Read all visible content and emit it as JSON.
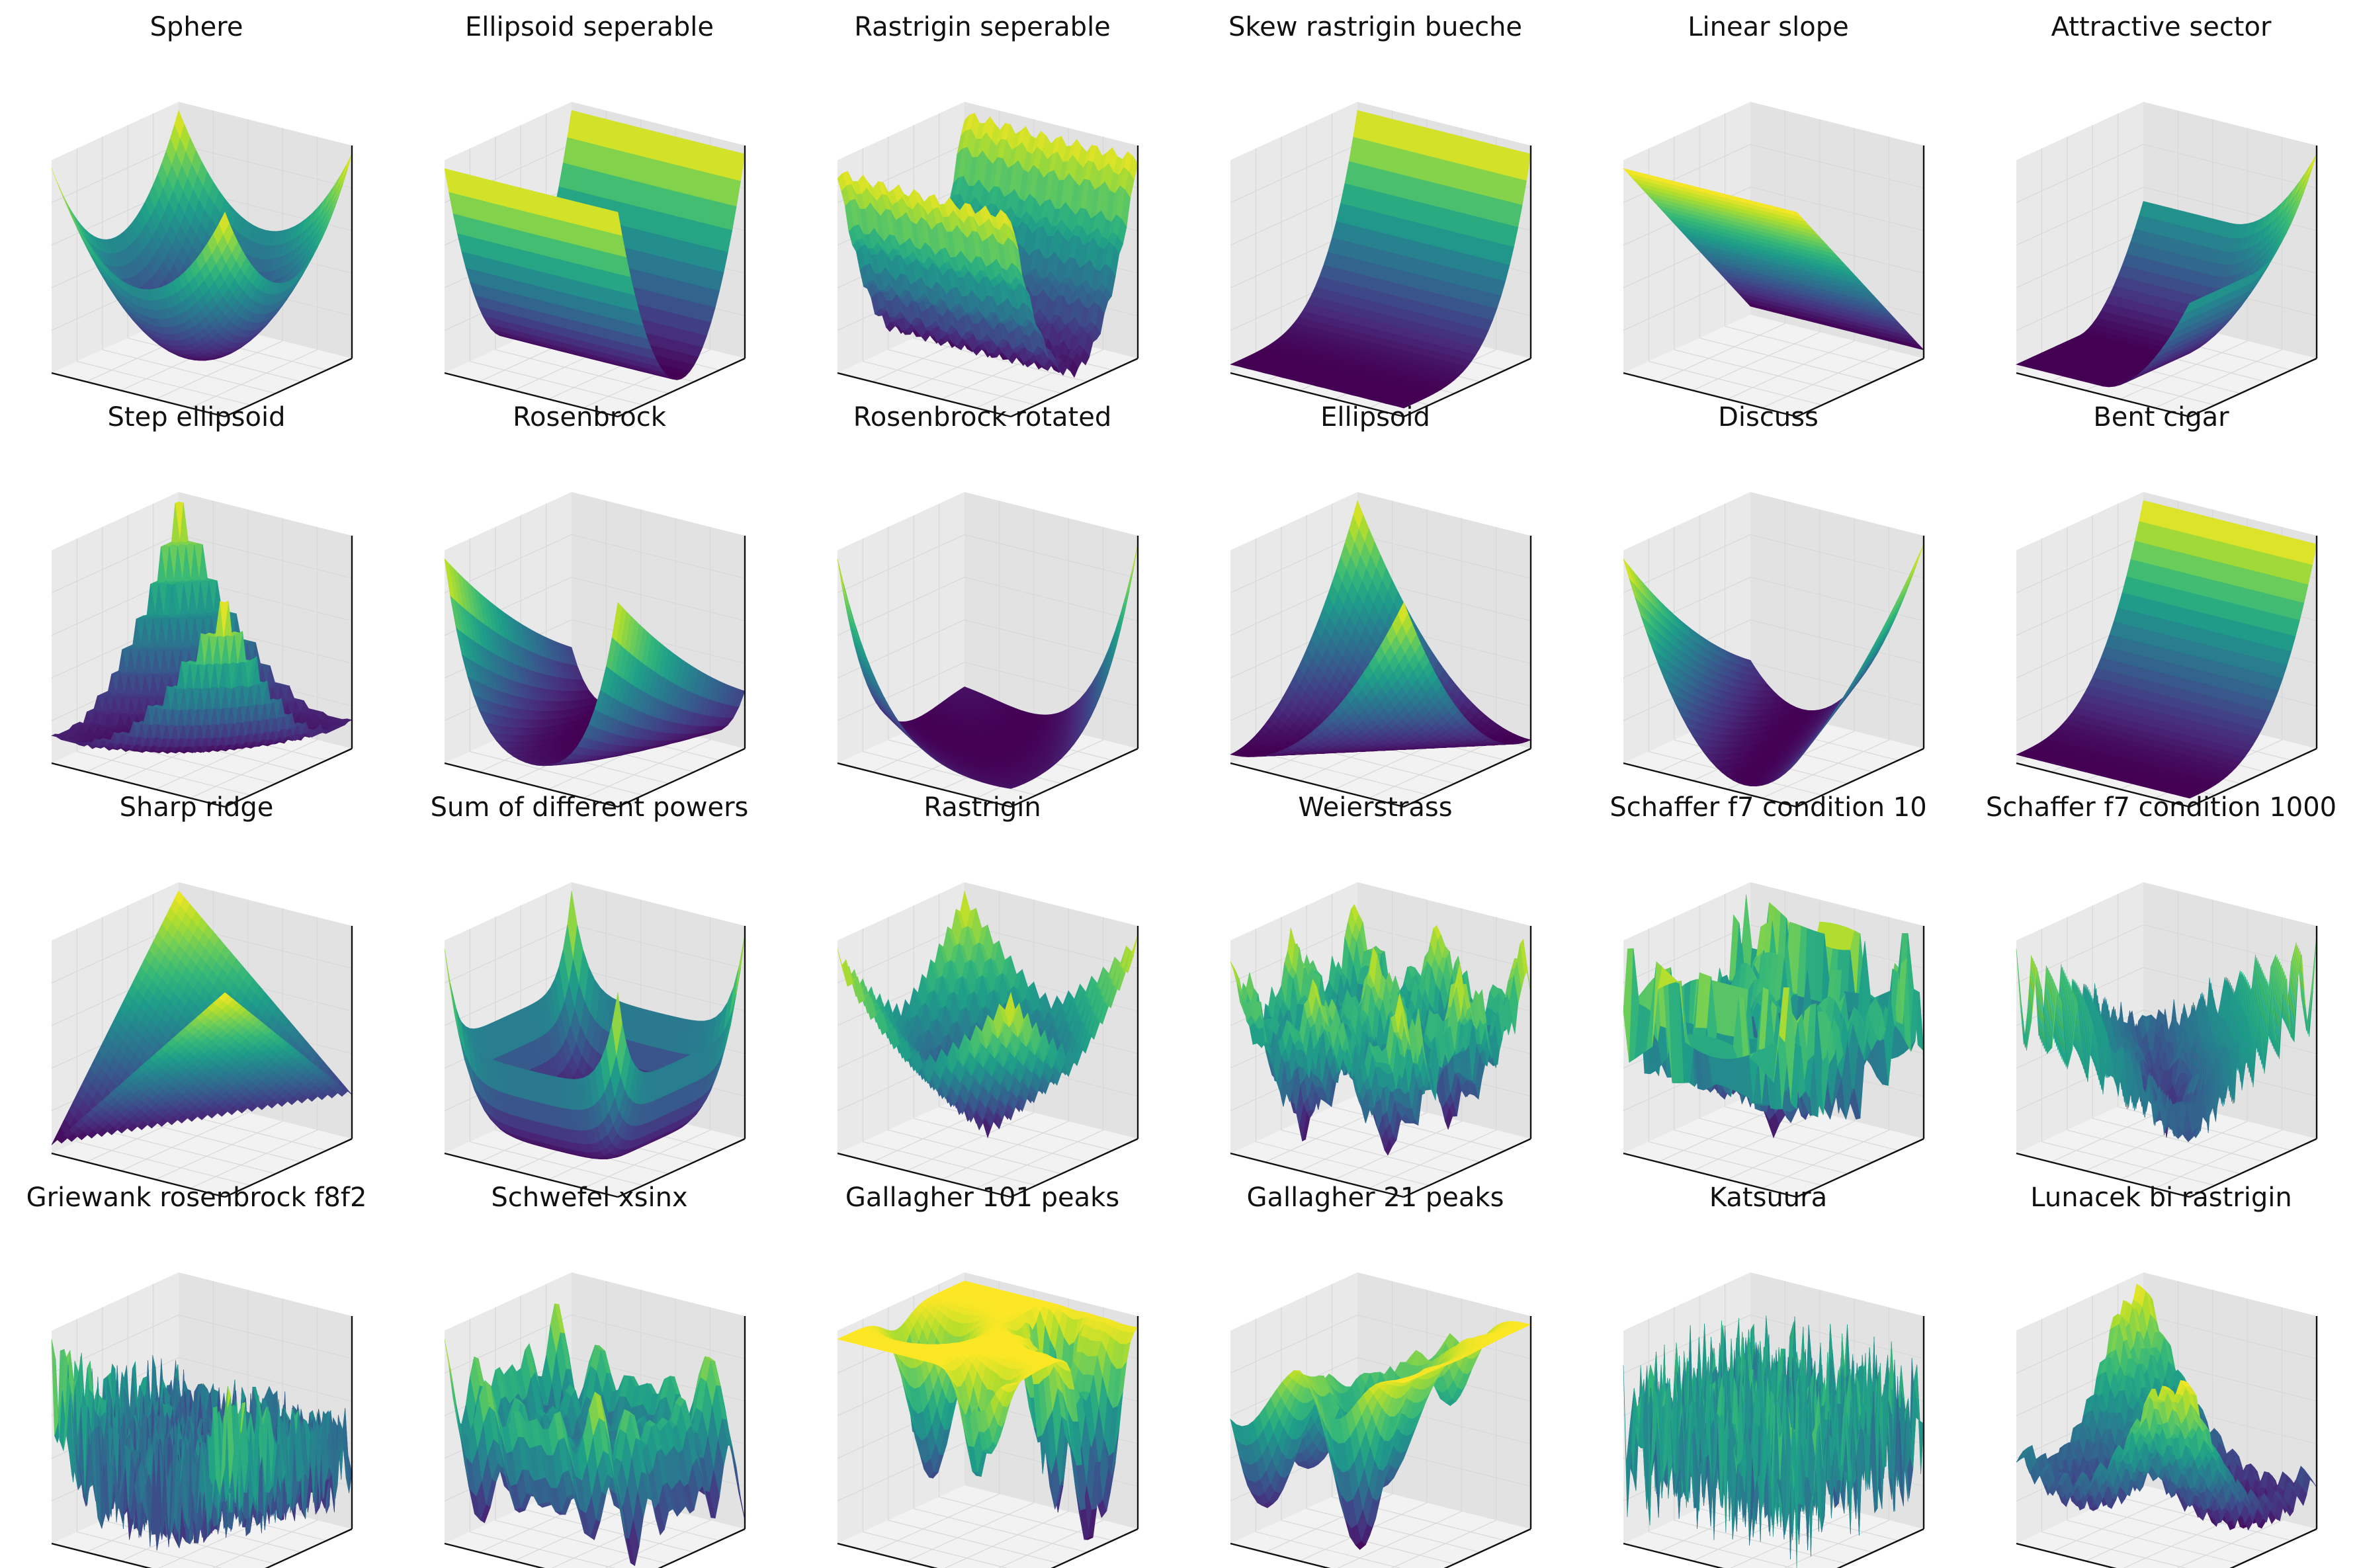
{
  "colors": {
    "pane_left": "#e9e9e9",
    "pane_right": "#e2e2e2",
    "pane_floor": "#f2f2f2",
    "axis_line": "#111111",
    "grid_line": "#d8d8d8",
    "colormap": "viridis"
  },
  "chart_data": [
    {
      "type": "surface",
      "title": "Sphere",
      "function": "sphere",
      "grid": true,
      "ticks": false
    },
    {
      "type": "surface",
      "title": "Ellipsoid seperable",
      "function": "ellipsoid_separable",
      "grid": true,
      "ticks": false
    },
    {
      "type": "surface",
      "title": "Rastrigin seperable",
      "function": "rastrigin_separable",
      "grid": true,
      "ticks": false
    },
    {
      "type": "surface",
      "title": "Skew rastrigin bueche",
      "function": "skew_rastrigin_bueche",
      "grid": true,
      "ticks": false
    },
    {
      "type": "surface",
      "title": "Linear slope",
      "function": "linear_slope",
      "grid": true,
      "ticks": false
    },
    {
      "type": "surface",
      "title": "Attractive sector",
      "function": "attractive_sector",
      "grid": true,
      "ticks": false
    },
    {
      "type": "surface",
      "title": "Step ellipsoid",
      "function": "step_ellipsoid",
      "grid": true,
      "ticks": false
    },
    {
      "type": "surface",
      "title": "Rosenbrock",
      "function": "rosenbrock",
      "grid": true,
      "ticks": false
    },
    {
      "type": "surface",
      "title": "Rosenbrock rotated",
      "function": "rosenbrock_rotated",
      "grid": true,
      "ticks": false
    },
    {
      "type": "surface",
      "title": "Ellipsoid",
      "function": "ellipsoid",
      "grid": true,
      "ticks": false
    },
    {
      "type": "surface",
      "title": "Discuss",
      "function": "discus",
      "grid": true,
      "ticks": false
    },
    {
      "type": "surface",
      "title": "Bent cigar",
      "function": "bent_cigar",
      "grid": true,
      "ticks": false
    },
    {
      "type": "surface",
      "title": "Sharp ridge",
      "function": "sharp_ridge",
      "grid": true,
      "ticks": false
    },
    {
      "type": "surface",
      "title": "Sum of different powers",
      "function": "different_powers",
      "grid": true,
      "ticks": false
    },
    {
      "type": "surface",
      "title": "Rastrigin",
      "function": "rastrigin",
      "grid": true,
      "ticks": false
    },
    {
      "type": "surface",
      "title": "Weierstrass",
      "function": "weierstrass",
      "grid": true,
      "ticks": false
    },
    {
      "type": "surface",
      "title": "Schaffer f7 condition 10",
      "function": "schaffer_10",
      "grid": true,
      "ticks": false
    },
    {
      "type": "surface",
      "title": "Schaffer f7 condition 1000",
      "function": "schaffer_1000",
      "grid": true,
      "ticks": false
    },
    {
      "type": "surface",
      "title": "Griewank rosenbrock f8f2",
      "function": "griewank_rosenbrock",
      "grid": true,
      "ticks": false
    },
    {
      "type": "surface",
      "title": "Schwefel xsinx",
      "function": "schwefel",
      "grid": true,
      "ticks": false
    },
    {
      "type": "surface",
      "title": "Gallagher 101 peaks",
      "function": "gallagher_101",
      "grid": true,
      "ticks": false
    },
    {
      "type": "surface",
      "title": "Gallagher 21 peaks",
      "function": "gallagher_21",
      "grid": true,
      "ticks": false
    },
    {
      "type": "surface",
      "title": "Katsuura",
      "function": "katsuura",
      "grid": true,
      "ticks": false
    },
    {
      "type": "surface",
      "title": "Lunacek bi rastrigin",
      "function": "lunacek_bi_rastrigin",
      "grid": true,
      "ticks": false
    }
  ]
}
